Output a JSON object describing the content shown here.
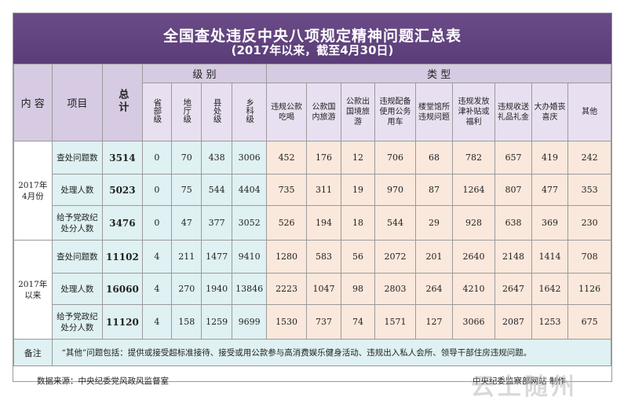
{
  "title": "全国查处违反中央八项规定精神问题汇总表",
  "subtitle": "(2017年以来，截至4月30日)",
  "headers": {
    "content": "内 容",
    "item": "项目",
    "total": "总计",
    "level_group": "级 别",
    "type_group": "类 型",
    "levels": [
      "省部级",
      "地厅级",
      "县处级",
      "乡科级"
    ],
    "types": [
      "违规公款吃喝",
      "公款国内旅游",
      "公款出国境旅游",
      "违规配备使用公务用车",
      "楼堂馆所违规问题",
      "违规发放津补贴或福利",
      "违规收送礼品礼金",
      "大办婚丧喜庆",
      "其他"
    ]
  },
  "groups": [
    {
      "label": "2017年4月份",
      "rows": [
        {
          "item": "查处问题数",
          "total": "3514",
          "levels": [
            "0",
            "70",
            "438",
            "3006"
          ],
          "types": [
            "452",
            "176",
            "12",
            "706",
            "68",
            "782",
            "657",
            "419",
            "242"
          ]
        },
        {
          "item": "处理人数",
          "total": "5023",
          "levels": [
            "0",
            "75",
            "544",
            "4404"
          ],
          "types": [
            "735",
            "311",
            "19",
            "970",
            "87",
            "1264",
            "807",
            "477",
            "353"
          ]
        },
        {
          "item": "给予党政纪处分人数",
          "total": "3476",
          "levels": [
            "0",
            "47",
            "377",
            "3052"
          ],
          "types": [
            "526",
            "194",
            "18",
            "544",
            "29",
            "928",
            "638",
            "369",
            "230"
          ]
        }
      ]
    },
    {
      "label": "2017年以来",
      "rows": [
        {
          "item": "查处问题数",
          "total": "11102",
          "levels": [
            "4",
            "211",
            "1477",
            "9410"
          ],
          "types": [
            "1280",
            "583",
            "56",
            "2072",
            "201",
            "2640",
            "2148",
            "1414",
            "708"
          ]
        },
        {
          "item": "处理人数",
          "total": "16060",
          "levels": [
            "4",
            "270",
            "1940",
            "13846"
          ],
          "types": [
            "2223",
            "1047",
            "98",
            "2803",
            "264",
            "4210",
            "2647",
            "1642",
            "1126"
          ]
        },
        {
          "item": "给予党政纪处分人数",
          "total": "11120",
          "levels": [
            "4",
            "158",
            "1259",
            "9699"
          ],
          "types": [
            "1530",
            "737",
            "74",
            "1571",
            "127",
            "3066",
            "2087",
            "1253",
            "675"
          ]
        }
      ]
    }
  ],
  "note": {
    "label": "备注",
    "text": "“其他”问题包括：提供或接受超标准接待、接受或用公款参与高消费娱乐健身活动、违规出入私人会所、领导干部住房违规问题。"
  },
  "footer": {
    "source": "数据来源：中央纪委党风政风监督室",
    "credit": "中央纪委监察部网站 制作",
    "watermark": "云上随州"
  }
}
